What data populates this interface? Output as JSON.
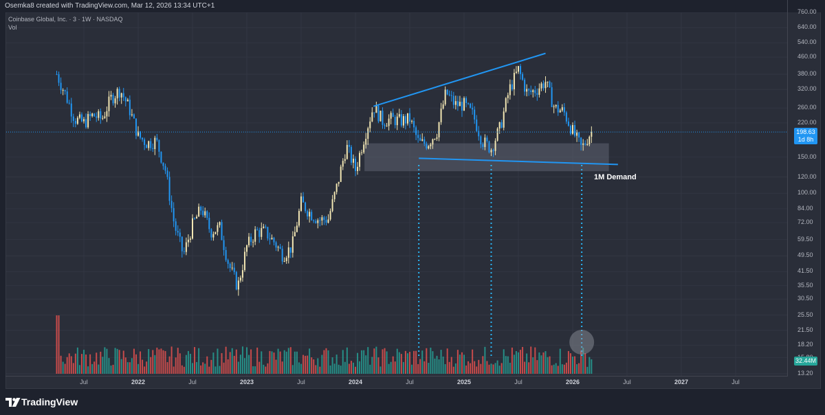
{
  "header": {
    "author_line": "Osemka8 created with TradingView.com, Mar 12, 2026 13:34 UTC+1",
    "symbol_line": "Coinbase Global, Inc. · 3 · 1W · NASDAQ",
    "vol_label": "Vol"
  },
  "price_axis": {
    "ticks": [
      "760.00",
      "640.00",
      "540.00",
      "460.00",
      "380.00",
      "320.00",
      "260.00",
      "220.00",
      "150.00",
      "120.00",
      "100.00",
      "84.00",
      "72.00",
      "59.50",
      "49.50",
      "41.50",
      "35.50",
      "30.50",
      "25.50",
      "21.50",
      "18.20",
      "15.80",
      "13.20"
    ],
    "current_price": "198.63",
    "countdown": "1d 8h",
    "volume": "32.44M"
  },
  "time_axis": {
    "ticks": [
      {
        "label": "Jul",
        "bold": false
      },
      {
        "label": "2022",
        "bold": true
      },
      {
        "label": "Jul",
        "bold": false
      },
      {
        "label": "2023",
        "bold": true
      },
      {
        "label": "Jul",
        "bold": false
      },
      {
        "label": "2024",
        "bold": true
      },
      {
        "label": "Jul",
        "bold": false
      },
      {
        "label": "2025",
        "bold": true
      },
      {
        "label": "Jul",
        "bold": false
      },
      {
        "label": "2026",
        "bold": true
      },
      {
        "label": "Jul",
        "bold": false
      },
      {
        "label": "2027",
        "bold": true
      },
      {
        "label": "Jul",
        "bold": false
      }
    ]
  },
  "annotations": {
    "demand_label": "1M Demand"
  },
  "brand": {
    "name": "TradingView"
  },
  "colors": {
    "up": "#f2e6b3",
    "down": "#2196f3",
    "vol_up": "#26a69a",
    "vol_down": "#ef5350",
    "trendline": "#2196f3",
    "demand_zone": "#5d6271"
  },
  "chart_data": {
    "type": "candlestick",
    "symbol": "COIN",
    "interval": "1W",
    "scale": "log",
    "ylim": [
      13.2,
      760
    ],
    "x_range": [
      "2021-04",
      "2027-10"
    ],
    "last_price": 198.63,
    "last_volume": "32.44M",
    "price_path": [
      {
        "date": "2021-04",
        "price": 380
      },
      {
        "date": "2021-05",
        "price": 300
      },
      {
        "date": "2021-06",
        "price": 230
      },
      {
        "date": "2021-07",
        "price": 220
      },
      {
        "date": "2021-08",
        "price": 240
      },
      {
        "date": "2021-09",
        "price": 230
      },
      {
        "date": "2021-10",
        "price": 290
      },
      {
        "date": "2021-11",
        "price": 320
      },
      {
        "date": "2021-12",
        "price": 260
      },
      {
        "date": "2022-01",
        "price": 190
      },
      {
        "date": "2022-02",
        "price": 175
      },
      {
        "date": "2022-03",
        "price": 180
      },
      {
        "date": "2022-04",
        "price": 130
      },
      {
        "date": "2022-05",
        "price": 70
      },
      {
        "date": "2022-06",
        "price": 50
      },
      {
        "date": "2022-07",
        "price": 70
      },
      {
        "date": "2022-08",
        "price": 85
      },
      {
        "date": "2022-09",
        "price": 65
      },
      {
        "date": "2022-10",
        "price": 68
      },
      {
        "date": "2022-11",
        "price": 45
      },
      {
        "date": "2022-12",
        "price": 35
      },
      {
        "date": "2023-01",
        "price": 55
      },
      {
        "date": "2023-02",
        "price": 65
      },
      {
        "date": "2023-03",
        "price": 65
      },
      {
        "date": "2023-04",
        "price": 58
      },
      {
        "date": "2023-05",
        "price": 50
      },
      {
        "date": "2023-06",
        "price": 55
      },
      {
        "date": "2023-07",
        "price": 90
      },
      {
        "date": "2023-08",
        "price": 80
      },
      {
        "date": "2023-09",
        "price": 74
      },
      {
        "date": "2023-10",
        "price": 75
      },
      {
        "date": "2023-11",
        "price": 110
      },
      {
        "date": "2023-12",
        "price": 170
      },
      {
        "date": "2024-01",
        "price": 130
      },
      {
        "date": "2024-02",
        "price": 190
      },
      {
        "date": "2024-03",
        "price": 265
      },
      {
        "date": "2024-04",
        "price": 225
      },
      {
        "date": "2024-05",
        "price": 230
      },
      {
        "date": "2024-06",
        "price": 225
      },
      {
        "date": "2024-07",
        "price": 230
      },
      {
        "date": "2024-08",
        "price": 175
      },
      {
        "date": "2024-09",
        "price": 175
      },
      {
        "date": "2024-10",
        "price": 200
      },
      {
        "date": "2024-11",
        "price": 310
      },
      {
        "date": "2024-12",
        "price": 270
      },
      {
        "date": "2025-01",
        "price": 270
      },
      {
        "date": "2025-02",
        "price": 240
      },
      {
        "date": "2025-03",
        "price": 180
      },
      {
        "date": "2025-04",
        "price": 165
      },
      {
        "date": "2025-05",
        "price": 210
      },
      {
        "date": "2025-06",
        "price": 320
      },
      {
        "date": "2025-07",
        "price": 400
      },
      {
        "date": "2025-08",
        "price": 305
      },
      {
        "date": "2025-09",
        "price": 320
      },
      {
        "date": "2025-10",
        "price": 350
      },
      {
        "date": "2025-11",
        "price": 260
      },
      {
        "date": "2025-12",
        "price": 250
      },
      {
        "date": "2026-01",
        "price": 200
      },
      {
        "date": "2026-02",
        "price": 165
      },
      {
        "date": "2026-03",
        "price": 198.63
      }
    ],
    "volume_bars_count": 258,
    "annotations": [
      {
        "type": "trendline",
        "label": "",
        "from": {
          "date": "2024-03",
          "price": 265
        },
        "to": {
          "date": "2025-10",
          "price": 480
        }
      },
      {
        "type": "trendline",
        "label": "",
        "from": {
          "date": "2024-08",
          "price": 148
        },
        "to": {
          "date": "2026-06",
          "price": 138
        }
      },
      {
        "type": "zone",
        "label": "1M Demand",
        "from_date": "2024-02",
        "to_date": "2026-05",
        "price_low": 128,
        "price_high": 175
      },
      {
        "type": "vertical_dotted",
        "date": "2024-08"
      },
      {
        "type": "vertical_dotted",
        "date": "2025-04"
      },
      {
        "type": "vertical_dotted",
        "date": "2026-02"
      },
      {
        "type": "highlight_circle",
        "date": "2026-02",
        "area": "volume"
      }
    ]
  }
}
